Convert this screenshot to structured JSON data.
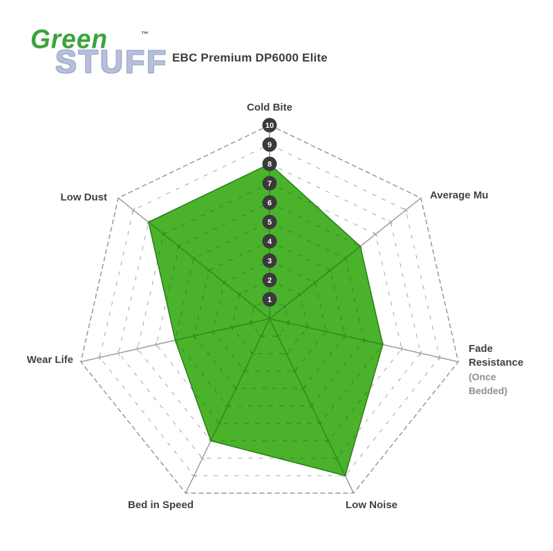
{
  "logo": {
    "brand_top": "Green",
    "brand_bottom": "STUFF",
    "trademark": "TM",
    "green_color": "#3ba33b",
    "stuff_color": "#b7bfdc"
  },
  "header": {
    "title": "EBC Premium DP6000 Elite"
  },
  "chart_data": {
    "type": "radar",
    "title": "EBC Premium DP6000 Elite",
    "scale": {
      "min": 1,
      "max": 10,
      "labels": [
        "1",
        "2",
        "3",
        "4",
        "5",
        "6",
        "7",
        "8",
        "9",
        "10"
      ]
    },
    "axes": [
      {
        "label": "Cold Bite",
        "value": 8
      },
      {
        "label": "Average Mu",
        "value": 6
      },
      {
        "label": "Fade Resistance",
        "sublabel": "(Once Bedded)",
        "value": 6
      },
      {
        "label": "Low Noise",
        "value": 9
      },
      {
        "label": "Bed in Speed",
        "value": 7
      },
      {
        "label": "Wear Life",
        "value": 5
      },
      {
        "label": "Low Dust",
        "value": 8
      }
    ],
    "layout": {
      "grid": "dashed concentric heptagons, rings 1-10, solid spokes with tick marks",
      "scale_dots": "numbered dark circles 1-10 along vertical Cold Bite axis",
      "legend": "none"
    },
    "colors": {
      "series_fill": "#4bb22c",
      "series_outline": "#2a7d14",
      "grid_outside": "#9c9c9c",
      "grid_inside": "#2e8a1a",
      "scale_dot_fill": "#3a3a3a",
      "scale_dot_text": "#ffffff",
      "label_text": "#414141",
      "sublabel_text": "#8f8f8f"
    }
  }
}
